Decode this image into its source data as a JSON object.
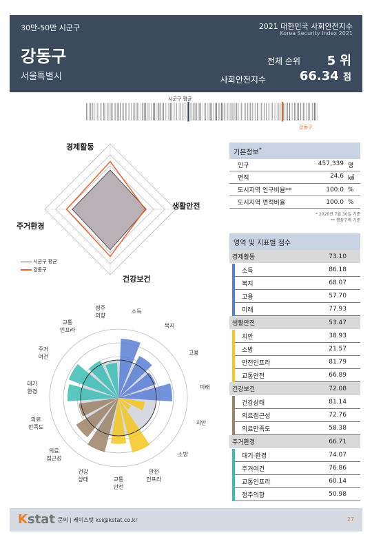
{
  "header": {
    "category": "30만-50만 시군구",
    "report_title": "2021 대한민국 사회안전지수",
    "report_subtitle": "Korea Security Index 2021",
    "district": "강동구",
    "province": "서울특별시",
    "rank_label": "전체 순위",
    "rank_value": "5 위",
    "index_label": "사회안전지수",
    "index_value": "66.34",
    "index_unit": "점"
  },
  "strip": {
    "avg_label": "시군구 평균",
    "district_label": "강동구"
  },
  "radar": {
    "axes": [
      "경제활동",
      "생활안전",
      "건강보건",
      "주거환경"
    ],
    "legend": [
      "시군구 평균",
      "강동구"
    ],
    "colors": {
      "avg": "#555555",
      "district": "#e8642a"
    }
  },
  "basic_info": {
    "title": "기본정보",
    "rows": [
      {
        "label": "인구",
        "value": "457,339",
        "unit": "명"
      },
      {
        "label": "면적",
        "value": "24.6",
        "unit": "㎢"
      },
      {
        "label": "도시지역 인구비율**",
        "value": "100.0",
        "unit": "%"
      },
      {
        "label": "도시지역 면적비율",
        "value": "100.0",
        "unit": "%"
      }
    ],
    "note1": "* 2020년 7월 30일 기준",
    "note2": "** 행정구역 기준"
  },
  "scores": {
    "title": "영역 및 지표별 점수",
    "groups": [
      {
        "name": "경제활동",
        "value": "73.10",
        "color": "#5b7fd6",
        "items": [
          {
            "label": "소득",
            "value": "86.18"
          },
          {
            "label": "복지",
            "value": "68.07"
          },
          {
            "label": "고용",
            "value": "57.70"
          },
          {
            "label": "미래",
            "value": "77.93"
          }
        ]
      },
      {
        "name": "생활안전",
        "value": "53.47",
        "color": "#f5c520",
        "items": [
          {
            "label": "치안",
            "value": "38.93"
          },
          {
            "label": "소방",
            "value": "21.57"
          },
          {
            "label": "안전인프라",
            "value": "81.79"
          },
          {
            "label": "교통안전",
            "value": "66.89"
          }
        ]
      },
      {
        "name": "건강보건",
        "value": "72.08",
        "color": "#9c8466",
        "items": [
          {
            "label": "건강상태",
            "value": "81.14"
          },
          {
            "label": "의료접근성",
            "value": "72.76"
          },
          {
            "label": "의료만족도",
            "value": "58.38"
          }
        ]
      },
      {
        "name": "주거환경",
        "value": "66.71",
        "color": "#3dbdb5",
        "items": [
          {
            "label": "대기·환경",
            "value": "74.07"
          },
          {
            "label": "주거여건",
            "value": "76.86"
          },
          {
            "label": "교통인프라",
            "value": "60.14"
          },
          {
            "label": "정주의향",
            "value": "50.98"
          }
        ]
      }
    ]
  },
  "polar": {
    "labels": [
      "소득",
      "복지",
      "고용",
      "미래",
      "치안",
      "소방",
      "안전\n인프라",
      "교통\n안전",
      "건강\n상태",
      "의료\n접근성",
      "의료\n만족도",
      "대기\n환경",
      "주거\n여건",
      "교통\n인프라",
      "정주\n의향"
    ],
    "values": [
      86.18,
      68.07,
      57.7,
      77.93,
      38.93,
      21.57,
      81.79,
      66.89,
      81.14,
      72.76,
      58.38,
      74.07,
      76.86,
      60.14,
      50.98
    ],
    "colors": [
      "#5b7fd6",
      "#5b7fd6",
      "#5b7fd6",
      "#5b7fd6",
      "#f5c520",
      "#f5c520",
      "#f5c520",
      "#f5c520",
      "#9c8466",
      "#9c8466",
      "#9c8466",
      "#3dbdb5",
      "#3dbdb5",
      "#3dbdb5",
      "#3dbdb5"
    ]
  },
  "footer": {
    "logo_k": "K",
    "logo_rest": "stat",
    "contact": "문의 | 케이스탯 ksi@kstat.co.kr",
    "page": "27"
  }
}
